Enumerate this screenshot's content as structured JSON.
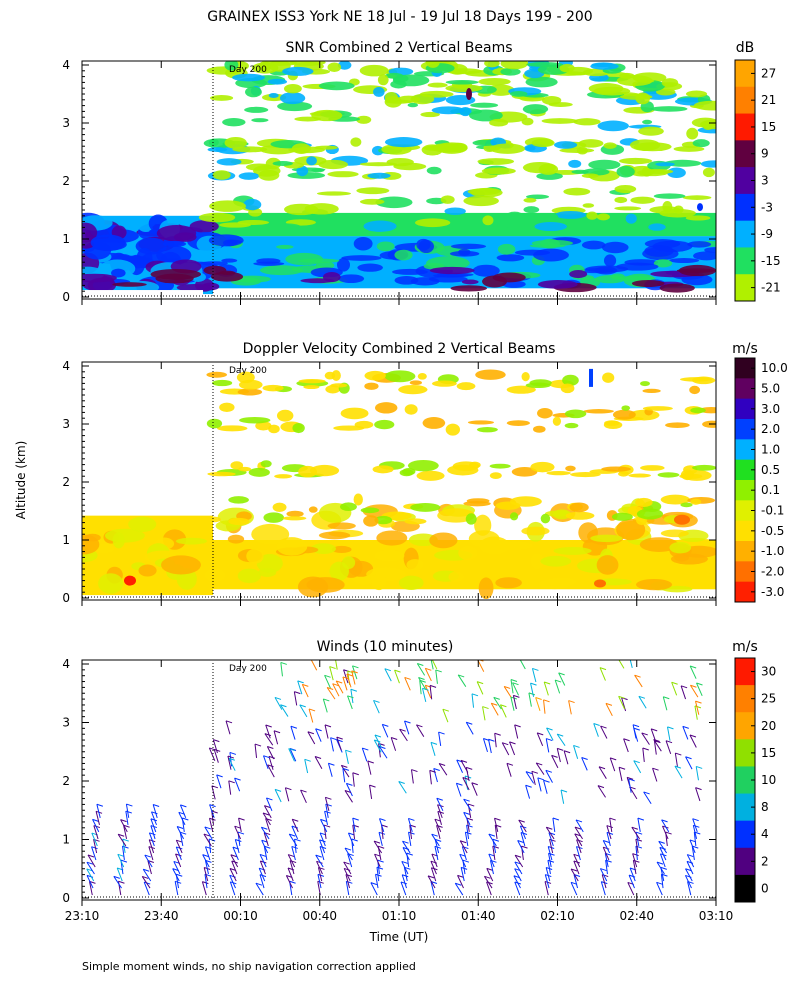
{
  "chart_data": {
    "type": "heatmap",
    "title": "GRAINEX ISS3 York NE  18 Jul - 19 Jul 18 Days 199 - 200",
    "xlabel": "Time (UT)",
    "ylabel": "Altitude (km)",
    "x_tick_labels": [
      "23:10",
      "23:40",
      "00:10",
      "00:40",
      "01:10",
      "01:40",
      "02:10",
      "02:40",
      "03:10"
    ],
    "y_tick_labels": [
      "0",
      "1",
      "2",
      "3",
      "4"
    ],
    "ylim": [
      0,
      4
    ],
    "day_marker_label": "Day 200",
    "footnote": "Simple moment winds, no ship navigation correction applied",
    "panels": [
      {
        "id": "snr",
        "title": "SNR Combined 2 Vertical Beams",
        "unit": "dB",
        "colorbar": {
          "labels": [
            "27",
            "21",
            "15",
            "9",
            "3",
            "-3",
            "-9",
            "-15",
            "-21"
          ],
          "colors": [
            "#ffa500",
            "#ff8000",
            "#ff1a00",
            "#600040",
            "#5000a0",
            "#0030ff",
            "#00b0ff",
            "#20e060",
            "#b0f000"
          ]
        }
      },
      {
        "id": "doppler",
        "title": "Doppler Velocity Combined 2 Vertical Beams",
        "unit": "m/s",
        "colorbar": {
          "labels": [
            "10.0",
            "5.0",
            "3.0",
            "2.0",
            "1.0",
            "0.5",
            "0.1",
            "-0.1",
            "-0.5",
            "-1.0",
            "-2.0",
            "-3.0"
          ],
          "colors": [
            "#300020",
            "#600060",
            "#3000c0",
            "#0040ff",
            "#00b0ff",
            "#20e020",
            "#90f000",
            "#e0f000",
            "#ffe000",
            "#ffb000",
            "#ff7000",
            "#ff2000"
          ]
        }
      },
      {
        "id": "winds",
        "title": "Winds (10 minutes)",
        "unit": "m/s",
        "colorbar": {
          "labels": [
            "30",
            "25",
            "20",
            "15",
            "10",
            "8",
            "4",
            "2",
            "0"
          ],
          "colors": [
            "#ff1a00",
            "#ff8000",
            "#ffa500",
            "#90e000",
            "#20d060",
            "#00b0e0",
            "#0030ff",
            "#500080",
            "#000000"
          ]
        }
      }
    ]
  }
}
